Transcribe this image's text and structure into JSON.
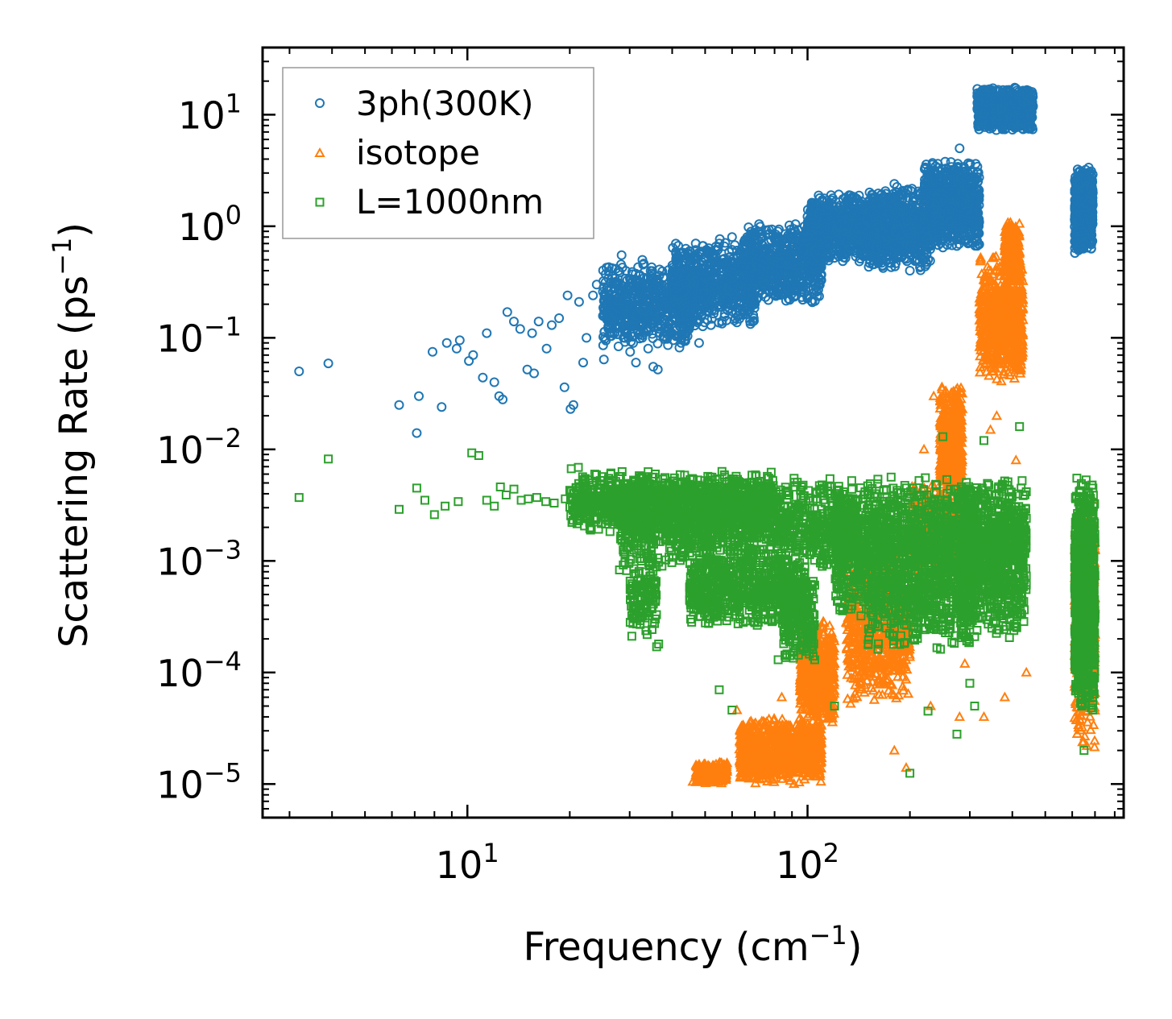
{
  "chart_data": {
    "type": "scatter",
    "title": "",
    "xlabel": "Frequency (cm",
    "xlabel_unit_exp": "−1",
    "xlabel_close": ")",
    "ylabel": "Scattering Rate (ps",
    "ylabel_unit_exp": "−1",
    "ylabel_close": ")",
    "xscale": "log",
    "yscale": "log",
    "xlim": [
      2.5,
      850
    ],
    "ylim": [
      5e-06,
      40
    ],
    "legend_position": "top-left",
    "x_ticks": [
      {
        "value": 10,
        "base": "10",
        "exp": "1"
      },
      {
        "value": 100,
        "base": "10",
        "exp": "2"
      }
    ],
    "y_ticks": [
      {
        "value": 10,
        "base": "10",
        "exp": "1"
      },
      {
        "value": 1,
        "base": "10",
        "exp": "0"
      },
      {
        "value": 0.1,
        "base": "10",
        "exp": "−1"
      },
      {
        "value": 0.01,
        "base": "10",
        "exp": "−2"
      },
      {
        "value": 0.001,
        "base": "10",
        "exp": "−3"
      },
      {
        "value": 0.0001,
        "base": "10",
        "exp": "−4"
      },
      {
        "value": 1e-05,
        "base": "10",
        "exp": "−5"
      }
    ],
    "series": [
      {
        "name": "3ph(300K)",
        "marker": "circle",
        "color": "#1f77b4",
        "points": [
          [
            3.2,
            0.05
          ],
          [
            3.9,
            0.059
          ],
          [
            6.3,
            0.025
          ],
          [
            7.1,
            0.014
          ],
          [
            7.2,
            0.03
          ],
          [
            7.9,
            0.075
          ],
          [
            8.4,
            0.024
          ],
          [
            8.7,
            0.09
          ],
          [
            9.3,
            0.08
          ],
          [
            9.5,
            0.095
          ],
          [
            10.1,
            0.062
          ],
          [
            10.4,
            0.07
          ],
          [
            11.1,
            0.044
          ],
          [
            11.4,
            0.11
          ],
          [
            12.0,
            0.04
          ],
          [
            12.4,
            0.03
          ],
          [
            12.7,
            0.028
          ],
          [
            13.1,
            0.17
          ],
          [
            13.7,
            0.14
          ],
          [
            14.3,
            0.12
          ],
          [
            15.0,
            0.052
          ],
          [
            15.5,
            0.11
          ],
          [
            15.7,
            0.048
          ],
          [
            16.2,
            0.14
          ],
          [
            17.1,
            0.08
          ],
          [
            17.7,
            0.13
          ],
          [
            18.6,
            0.15
          ],
          [
            19.3,
            0.036
          ],
          [
            19.7,
            0.24
          ],
          [
            20.1,
            0.023
          ],
          [
            20.5,
            0.025
          ],
          [
            21.3,
            0.21
          ],
          [
            21.9,
            0.06
          ],
          [
            22.4,
            0.1
          ],
          [
            23.4,
            0.24
          ],
          [
            24.0,
            0.3
          ],
          [
            25.2,
            0.064
          ],
          [
            26.0,
            0.16
          ],
          [
            27.1,
            0.11
          ],
          [
            28.4,
            0.55
          ],
          [
            29.2,
            0.12
          ],
          [
            30.1,
            0.075
          ],
          [
            31.3,
            0.06
          ],
          [
            32.7,
            0.5
          ],
          [
            34.0,
            0.08
          ],
          [
            35.2,
            0.055
          ],
          [
            36.3,
            0.052
          ],
          [
            38.0,
            0.35
          ],
          [
            40.0,
            0.11
          ],
          [
            42.5,
            0.09
          ],
          [
            45.0,
            0.6
          ],
          [
            48.0,
            0.09
          ],
          [
            52.0,
            0.13
          ],
          [
            55.0,
            0.7
          ],
          [
            60.0,
            0.8
          ],
          [
            65.0,
            0.5
          ],
          [
            70.0,
            0.2
          ],
          [
            75.0,
            0.3
          ],
          [
            80.0,
            0.45
          ],
          [
            85.0,
            0.6
          ],
          [
            92.0,
            0.9
          ],
          [
            98.0,
            1.0
          ],
          [
            105.0,
            0.6
          ],
          [
            112.0,
            0.5
          ],
          [
            120.0,
            1.3
          ],
          [
            135.0,
            1.6
          ],
          [
            150.0,
            1.2
          ],
          [
            165.0,
            1.8
          ],
          [
            180.0,
            2.4
          ],
          [
            200.0,
            0.4
          ],
          [
            215.0,
            2.0
          ],
          [
            235.0,
            1.4
          ],
          [
            255.0,
            3.3
          ],
          [
            280.0,
            5.0
          ],
          [
            300.0,
            1.8
          ]
        ],
        "bands": [
          {
            "x": [
              25,
              45
            ],
            "y": [
              0.08,
              0.5
            ],
            "n": 600,
            "seed": 11
          },
          {
            "x": [
              40,
              70
            ],
            "y": [
              0.12,
              0.8
            ],
            "n": 700,
            "seed": 12
          },
          {
            "x": [
              65,
              110
            ],
            "y": [
              0.2,
              1.1
            ],
            "n": 700,
            "seed": 13
          },
          {
            "x": [
              100,
              160
            ],
            "y": [
              0.45,
              2.0
            ],
            "n": 800,
            "seed": 14
          },
          {
            "x": [
              150,
              230
            ],
            "y": [
              0.4,
              2.3
            ],
            "n": 800,
            "seed": 15
          },
          {
            "x": [
              220,
              320
            ],
            "y": [
              0.6,
              4.0
            ],
            "n": 800,
            "seed": 16
          },
          {
            "x": [
              315,
              460
            ],
            "y": [
              7,
              18
            ],
            "n": 900,
            "seed": 17
          },
          {
            "x": [
              610,
              690
            ],
            "y": [
              0.55,
              3.5
            ],
            "n": 700,
            "seed": 18
          }
        ]
      },
      {
        "name": "isotope",
        "marker": "triangle",
        "color": "#ff7f0e",
        "points": [
          [
            46,
            1.05e-05
          ],
          [
            48,
            1.5e-05
          ],
          [
            56,
            1.2e-05
          ],
          [
            62,
            4.6e-05
          ],
          [
            66,
            2e-05
          ],
          [
            72,
            1.2e-05
          ],
          [
            84,
            6e-05
          ],
          [
            110,
            0.00013
          ],
          [
            116,
            8e-05
          ],
          [
            120,
            0.00012
          ],
          [
            150,
            0.00012
          ],
          [
            180,
            2e-05
          ],
          [
            195,
            1.4e-05
          ],
          [
            220,
            0.01
          ],
          [
            230,
            5e-05
          ],
          [
            235,
            0.03
          ],
          [
            250,
            0.012
          ],
          [
            280,
            4e-05
          ],
          [
            290,
            0.00012
          ],
          [
            330,
            4e-05
          ],
          [
            345,
            0.015
          ],
          [
            360,
            0.02
          ],
          [
            380,
            6e-05
          ],
          [
            410,
            0.008
          ],
          [
            440,
            0.0001
          ]
        ],
        "bands": [
          {
            "x": [
              47,
              58
            ],
            "y": [
              1e-05,
              1.6e-05
            ],
            "n": 300,
            "seed": 21
          },
          {
            "x": [
              63,
              110
            ],
            "y": [
              1e-05,
              4e-05
            ],
            "n": 900,
            "seed": 22
          },
          {
            "x": [
              95,
              120
            ],
            "y": [
              3e-05,
              0.0003
            ],
            "n": 500,
            "seed": 23
          },
          {
            "x": [
              130,
              200
            ],
            "y": [
              5e-05,
              0.0015
            ],
            "n": 700,
            "seed": 24
          },
          {
            "x": [
              200,
              290
            ],
            "y": [
              0.0007,
              0.005
            ],
            "n": 500,
            "seed": 25
          },
          {
            "x": [
              245,
              285
            ],
            "y": [
              0.003,
              0.04
            ],
            "n": 400,
            "seed": 26
          },
          {
            "x": [
              320,
              430
            ],
            "y": [
              0.04,
              0.6
            ],
            "n": 700,
            "seed": 27
          },
          {
            "x": [
              380,
              420
            ],
            "y": [
              0.3,
              1.2
            ],
            "n": 250,
            "seed": 28
          },
          {
            "x": [
              610,
              700
            ],
            "y": [
              2e-05,
              0.004
            ],
            "n": 600,
            "seed": 29
          }
        ]
      },
      {
        "name": "L=1000nm",
        "marker": "square",
        "color": "#2ca02c",
        "points": [
          [
            3.2,
            0.0037
          ],
          [
            3.9,
            0.0082
          ],
          [
            6.3,
            0.0029
          ],
          [
            7.1,
            0.0045
          ],
          [
            7.5,
            0.0035
          ],
          [
            8.0,
            0.0026
          ],
          [
            8.6,
            0.0031
          ],
          [
            9.4,
            0.0034
          ],
          [
            10.3,
            0.0093
          ],
          [
            10.8,
            0.0088
          ],
          [
            11.4,
            0.0035
          ],
          [
            12.0,
            0.0031
          ],
          [
            12.5,
            0.0046
          ],
          [
            13.0,
            0.0039
          ],
          [
            13.7,
            0.0044
          ],
          [
            14.4,
            0.0035
          ],
          [
            15.1,
            0.0036
          ],
          [
            16.0,
            0.0037
          ],
          [
            17.0,
            0.0034
          ],
          [
            18.0,
            0.0033
          ],
          [
            19.4,
            0.0036
          ],
          [
            20.2,
            0.0067
          ],
          [
            21.2,
            0.0069
          ],
          [
            22.1,
            0.0052
          ],
          [
            23.0,
            0.0041
          ],
          [
            24.0,
            0.0052
          ],
          [
            26.0,
            0.0055
          ],
          [
            28.0,
            0.0048
          ],
          [
            30.0,
            0.0045
          ],
          [
            32.0,
            0.0058
          ],
          [
            34.0,
            0.0063
          ],
          [
            21.0,
            0.0023
          ],
          [
            36.0,
            0.00017
          ],
          [
            36.5,
            0.00018
          ],
          [
            55.0,
            7e-05
          ],
          [
            60.0,
            4.6e-05
          ],
          [
            82.0,
            0.00013
          ],
          [
            105.0,
            0.00013
          ],
          [
            120.0,
            5e-05
          ],
          [
            200.0,
            1.25e-05
          ],
          [
            226.0,
            4.5e-05
          ],
          [
            275.0,
            2.8e-05
          ],
          [
            310.0,
            5e-05
          ],
          [
            300.0,
            8e-05
          ],
          [
            640.0,
            5e-05
          ],
          [
            650.0,
            2e-05
          ],
          [
            28.0,
            0.00083
          ],
          [
            250.0,
            0.013
          ],
          [
            330.0,
            0.012
          ],
          [
            420.0,
            0.016
          ]
        ],
        "bands": [
          {
            "x": [
              20,
              80
            ],
            "y": [
              0.0017,
              0.0065
            ],
            "n": 1000,
            "seed": 31
          },
          {
            "x": [
              28,
              140
            ],
            "y": [
              0.0008,
              0.006
            ],
            "n": 1200,
            "seed": 32
          },
          {
            "x": [
              30,
              36
            ],
            "y": [
              0.0002,
              0.001
            ],
            "n": 120,
            "seed": 33
          },
          {
            "x": [
              45,
              100
            ],
            "y": [
              0.00025,
              0.0012
            ],
            "n": 700,
            "seed": 34
          },
          {
            "x": [
              85,
              105
            ],
            "y": [
              0.00012,
              0.0007
            ],
            "n": 200,
            "seed": 35
          },
          {
            "x": [
              120,
              320
            ],
            "y": [
              0.0003,
              0.0058
            ],
            "n": 1400,
            "seed": 36
          },
          {
            "x": [
              150,
              300
            ],
            "y": [
              0.00015,
              0.0009
            ],
            "n": 300,
            "seed": 37
          },
          {
            "x": [
              280,
              440
            ],
            "y": [
              0.0002,
              0.006
            ],
            "n": 900,
            "seed": 38
          },
          {
            "x": [
              610,
              700
            ],
            "y": [
              4e-05,
              0.006
            ],
            "n": 900,
            "seed": 39
          }
        ]
      }
    ]
  }
}
